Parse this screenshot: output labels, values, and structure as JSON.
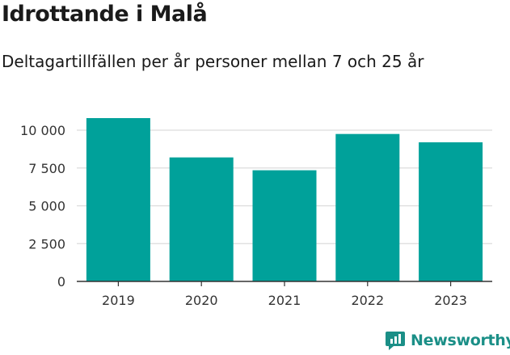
{
  "title": "Idrottande i Malå",
  "subtitle": "Deltagartillfällen per år personer mellan 7 och 25 år",
  "brand": {
    "name": "Newsworthy",
    "color": "#1b8f87"
  },
  "chart_data": {
    "type": "bar",
    "categories": [
      "2019",
      "2020",
      "2021",
      "2022",
      "2023"
    ],
    "values": [
      10800,
      8200,
      7350,
      9750,
      9200
    ],
    "ylim": [
      0,
      11500
    ],
    "yticks": [
      0,
      2500,
      5000,
      7500,
      10000
    ],
    "ytick_labels": [
      "0",
      "2 500",
      "5 000",
      "7 500",
      "10 000"
    ],
    "grid": true,
    "bar_color": "#00a19a"
  }
}
